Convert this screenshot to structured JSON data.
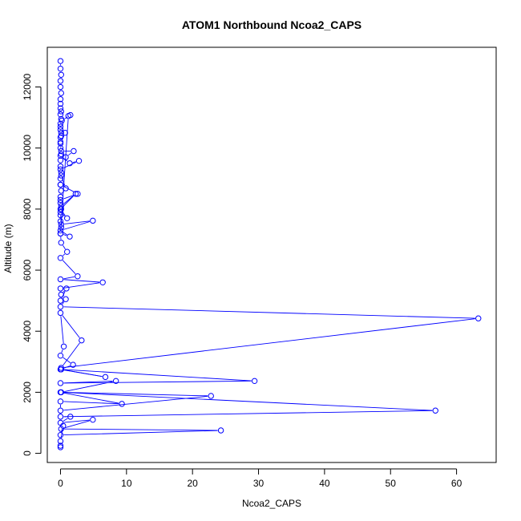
{
  "chart_data": {
    "type": "line",
    "title": "ATOM1 Northbound Ncoa2_CAPS",
    "xlabel": "Ncoa2_CAPS",
    "ylabel": "Altitude (m)",
    "xlim": [
      -2,
      66
    ],
    "ylim": [
      -300,
      13300
    ],
    "xticks": [
      0,
      10,
      20,
      30,
      40,
      50,
      60
    ],
    "yticks": [
      0,
      2000,
      4000,
      6000,
      8000,
      10000,
      12000
    ],
    "grid": false,
    "legend": "none",
    "color": "#0000ff",
    "series": [
      {
        "x": [
          0.0,
          0.0,
          0.1,
          0.0,
          0.0,
          0.1,
          0.0,
          0.0,
          0.0,
          0.1,
          0.0,
          0.1,
          0.0,
          0.0,
          0.1,
          0.0,
          0.0,
          0.1,
          0.0,
          0.0,
          0.1,
          0.0,
          0.0,
          0.1,
          0.0,
          0.0,
          0.1,
          0.0,
          0.0,
          0.1,
          0.0,
          1.2,
          1.5,
          0.2,
          0.0,
          0.1,
          0.0,
          0.7,
          0.0,
          0.1,
          2.0,
          0.8,
          0.0,
          1.4,
          2.8,
          0.0,
          0.1,
          0.8,
          0.0,
          2.6,
          0.0,
          0.1,
          2.3,
          0.0,
          1.0,
          0.0,
          0.1,
          4.9,
          0.0,
          1.4,
          0.0,
          0.1,
          1.0,
          0.0,
          2.6,
          0.0,
          6.4,
          0.0,
          0.1,
          0.9,
          0.0,
          0.8,
          0.0,
          63.3,
          0.1,
          3.2,
          0.0,
          0.5,
          0.0,
          1.9,
          0.0,
          6.8,
          0.1,
          29.4,
          0.0,
          8.4,
          0.1,
          22.8,
          0.0,
          0.0,
          9.3,
          0.0,
          56.8,
          0.0,
          1.5,
          0.0,
          4.9,
          0.1,
          24.3,
          0.0,
          0.4,
          0.0,
          0.0,
          0.0
        ],
        "y": [
          12850,
          12600,
          12400,
          12200,
          12000,
          11800,
          11600,
          11450,
          11300,
          11200,
          11100,
          10950,
          10800,
          10600,
          10400,
          10200,
          10000,
          9800,
          9600,
          9400,
          9200,
          9000,
          8800,
          8600,
          8400,
          8200,
          8000,
          7800,
          7600,
          7400,
          7200,
          11050,
          11080,
          10900,
          10700,
          10500,
          10350,
          10500,
          10150,
          9900,
          9900,
          9700,
          9750,
          9500,
          9580,
          9300,
          9100,
          8680,
          8800,
          8500,
          8300,
          8100,
          8500,
          8000,
          7700,
          7900,
          7500,
          7620,
          7300,
          7100,
          7200,
          6900,
          6600,
          6400,
          5800,
          5700,
          5600,
          5400,
          5200,
          5400,
          5000,
          5050,
          4800,
          4420,
          2800,
          3700,
          4600,
          3500,
          3200,
          2900,
          2750,
          2500,
          2750,
          2370,
          2300,
          2370,
          2000,
          1880,
          1400,
          1700,
          1620,
          2000,
          1400,
          1200,
          1200,
          1000,
          1100,
          800,
          750,
          600,
          900,
          400,
          250,
          200
        ]
      }
    ]
  }
}
